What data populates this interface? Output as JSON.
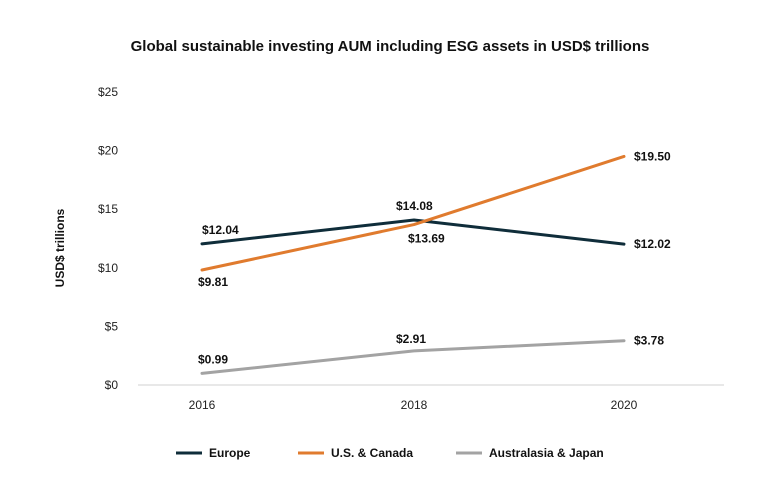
{
  "chart_data": {
    "type": "line",
    "title": "Global sustainable investing AUM including ESG assets in USD$ trillions",
    "ylabel": "USD$ trillions",
    "xlabel": "",
    "x": [
      "2016",
      "2018",
      "2020"
    ],
    "ylim": [
      0,
      25
    ],
    "yticks": [
      0,
      5,
      10,
      15,
      20,
      25
    ],
    "ytick_labels": [
      "$0",
      "$5",
      "$10",
      "$15",
      "$20",
      "$25"
    ],
    "grid": false,
    "legend_position": "bottom",
    "series": [
      {
        "name": "Europe",
        "color": "#0f2d3a",
        "values": [
          12.04,
          14.08,
          12.02
        ],
        "labels": [
          "$12.04",
          "$14.08",
          "$12.02"
        ]
      },
      {
        "name": "U.S. & Canada",
        "color": "#e07b2e",
        "values": [
          9.81,
          13.69,
          19.5
        ],
        "labels": [
          "$9.81",
          "$13.69",
          "$19.50"
        ]
      },
      {
        "name": "Australasia & Japan",
        "color": "#a3a3a3",
        "values": [
          0.99,
          2.91,
          3.78
        ],
        "labels": [
          "$0.99",
          "$2.91",
          "$3.78"
        ]
      }
    ]
  }
}
